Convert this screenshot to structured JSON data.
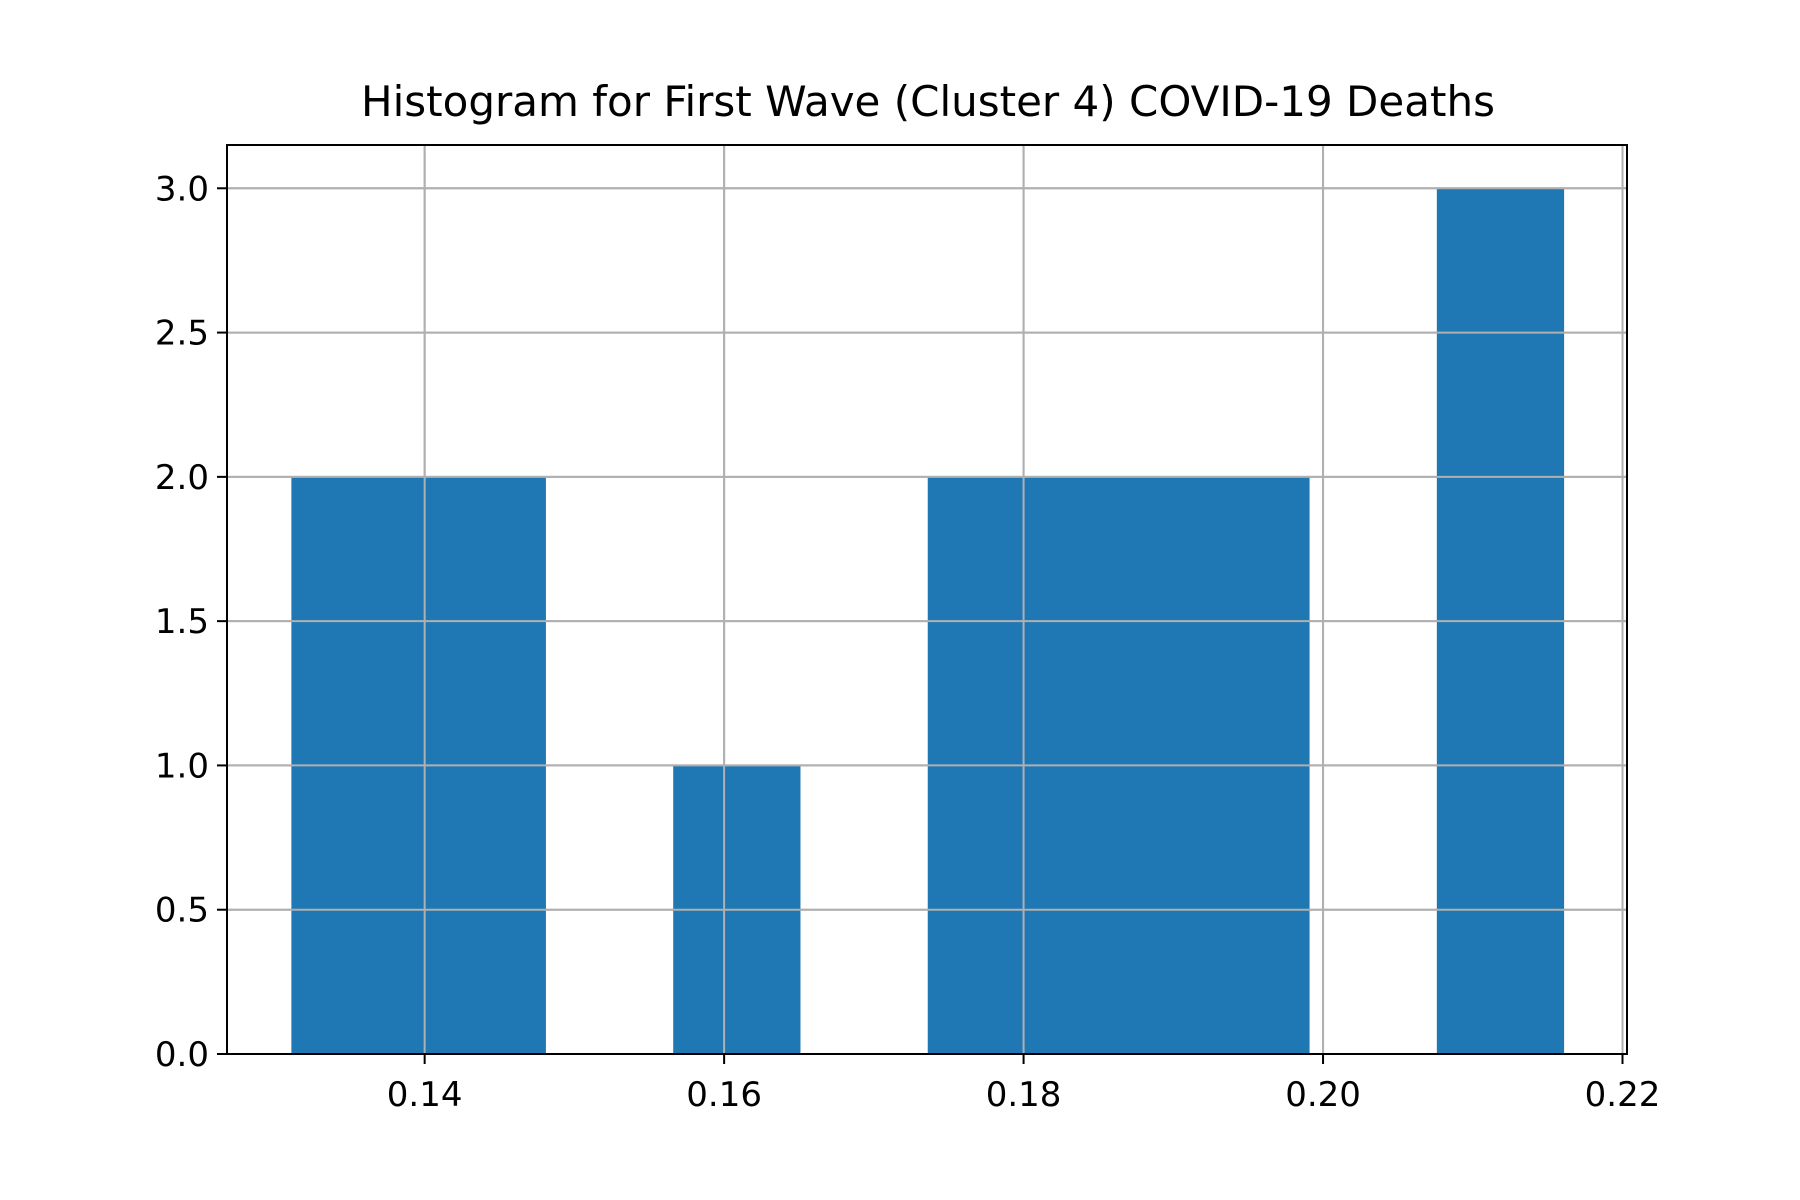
{
  "chart_data": {
    "type": "bar",
    "title": "Histogram for First Wave (Cluster 4) COVID-19 Deaths",
    "xlabel": "",
    "ylabel": "",
    "xlim": [
      0.1268,
      0.2203
    ],
    "ylim": [
      0,
      3.15
    ],
    "grid": true,
    "bar_color": "#1f77b4",
    "x_ticks": [
      {
        "value": 0.14,
        "label": "0.14"
      },
      {
        "value": 0.16,
        "label": "0.16"
      },
      {
        "value": 0.18,
        "label": "0.18"
      },
      {
        "value": 0.2,
        "label": "0.20"
      },
      {
        "value": 0.22,
        "label": "0.22"
      }
    ],
    "y_ticks": [
      {
        "value": 0.0,
        "label": "0.0"
      },
      {
        "value": 0.5,
        "label": "0.5"
      },
      {
        "value": 1.0,
        "label": "1.0"
      },
      {
        "value": 1.5,
        "label": "1.5"
      },
      {
        "value": 2.0,
        "label": "2.0"
      },
      {
        "value": 2.5,
        "label": "2.5"
      },
      {
        "value": 3.0,
        "label": "3.0"
      }
    ],
    "bins": [
      {
        "x0": 0.1311,
        "x1": 0.1481,
        "count": 2
      },
      {
        "x0": 0.1566,
        "x1": 0.1651,
        "count": 1
      },
      {
        "x0": 0.1736,
        "x1": 0.1991,
        "count": 2
      },
      {
        "x0": 0.2076,
        "x1": 0.2161,
        "count": 3
      }
    ]
  }
}
